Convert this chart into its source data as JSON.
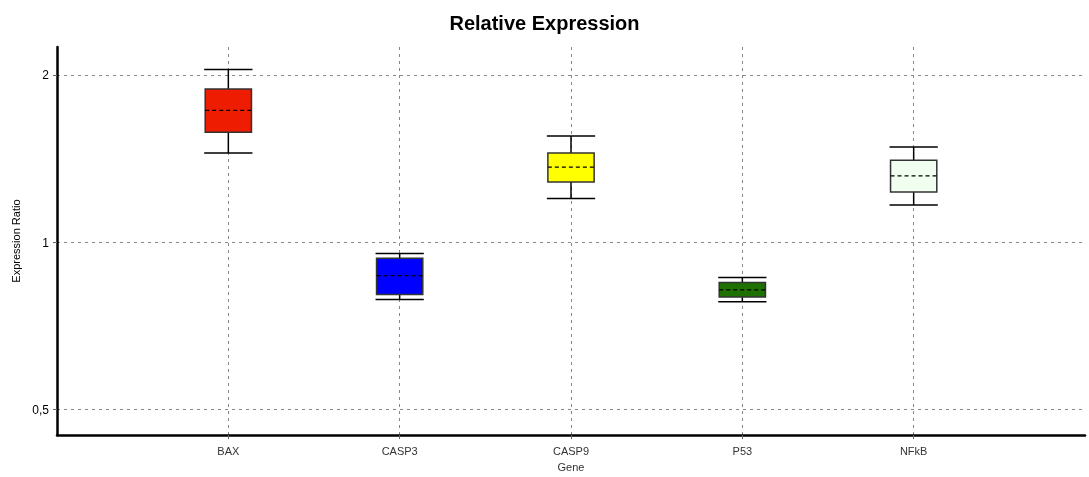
{
  "chart_data": {
    "type": "box",
    "title": "Relative Expression",
    "xlabel": "Gene",
    "ylabel": "Expression Ratio",
    "categories": [
      "BAX",
      "CASP3",
      "CASP9",
      "P53",
      "NFkB"
    ],
    "boxes": [
      {
        "low": 1.45,
        "q1": 1.58,
        "median": 1.73,
        "q3": 1.89,
        "high": 2.05
      },
      {
        "low": 0.79,
        "q1": 0.806,
        "median": 0.872,
        "q3": 0.937,
        "high": 0.956
      },
      {
        "low": 1.2,
        "q1": 1.285,
        "median": 1.367,
        "q3": 1.45,
        "high": 1.555
      },
      {
        "low": 0.782,
        "q1": 0.798,
        "median": 0.822,
        "q3": 0.847,
        "high": 0.865
      },
      {
        "low": 1.169,
        "q1": 1.233,
        "median": 1.318,
        "q3": 1.407,
        "high": 1.486
      }
    ],
    "colors": [
      "#ee1c00",
      "#0000ff",
      "#ffff00",
      "#1e7000",
      "#f0fff0"
    ],
    "log": true,
    "ylim": [
      0.45,
      2.25
    ],
    "yticks": [
      {
        "value": 0.5,
        "label": "0,5"
      },
      1,
      2
    ],
    "grid": true
  }
}
